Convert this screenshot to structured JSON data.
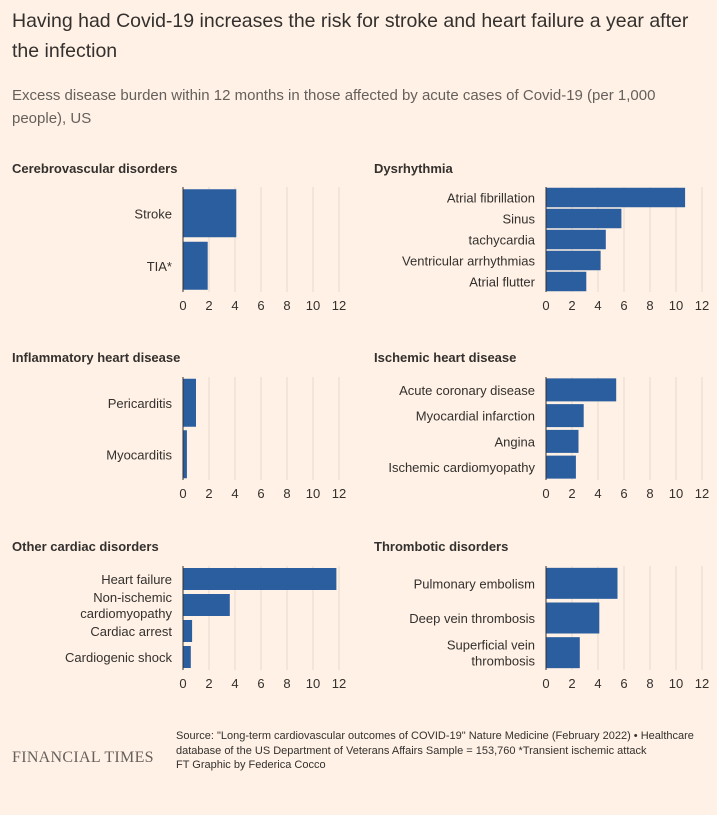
{
  "header": {
    "title": "Having had Covid-19 increases the risk for stroke and heart failure a year after the infection",
    "subtitle": "Excess disease burden within 12 months in those affected by acute cases of Covid-19 (per 1,000 people), US"
  },
  "footer": {
    "logo": "FINANCIAL TIMES",
    "source": "Source: \"Long-term cardiovascular outcomes of COVID-19\" Nature Medicine (February 2022) • Healthcare database of the US Department of Veterans Affairs Sample = 153,760 *Transient ischemic attack",
    "credit": "FT Graphic by Federica Cocco"
  },
  "colors": {
    "bar": "#2a5e9e",
    "grid": "#e7d9cc",
    "axis": "#33302e",
    "text": "#33302e",
    "background": "#fff1e5"
  },
  "chart_data": [
    {
      "type": "bar",
      "orientation": "horizontal",
      "title": "Cerebrovascular disorders",
      "categories": [
        "Stroke",
        "TIA*"
      ],
      "values": [
        4.1,
        1.9
      ],
      "xlim": [
        0,
        12
      ],
      "xticks": [
        "0",
        "2",
        "4",
        "6",
        "8",
        "10",
        "12"
      ],
      "grid": true
    },
    {
      "type": "bar",
      "orientation": "horizontal",
      "title": "Dysrhythmia",
      "categories": [
        "Atrial fibrillation",
        "Sinus",
        "tachycardia",
        "Ventricular arrhythmias",
        "Atrial flutter"
      ],
      "values": [
        10.7,
        5.8,
        4.6,
        4.2,
        3.1
      ],
      "xlim": [
        0,
        12
      ],
      "xticks": [
        "0",
        "2",
        "4",
        "6",
        "8",
        "10",
        "12"
      ],
      "grid": true
    },
    {
      "type": "bar",
      "orientation": "horizontal",
      "title": "Inflammatory heart disease",
      "categories": [
        "Pericarditis",
        "Myocarditis"
      ],
      "values": [
        1.0,
        0.3
      ],
      "xlim": [
        0,
        12
      ],
      "xticks": [
        "0",
        "2",
        "4",
        "6",
        "8",
        "10",
        "12"
      ],
      "grid": true
    },
    {
      "type": "bar",
      "orientation": "horizontal",
      "title": "Ischemic heart disease",
      "categories": [
        "Acute coronary disease",
        "Myocardial infarction",
        "Angina",
        "Ischemic cardiomyopathy"
      ],
      "values": [
        5.4,
        2.9,
        2.5,
        2.3
      ],
      "xlim": [
        0,
        12
      ],
      "xticks": [
        "0",
        "2",
        "4",
        "6",
        "8",
        "10",
        "12"
      ],
      "grid": true
    },
    {
      "type": "bar",
      "orientation": "horizontal",
      "title": "Other cardiac disorders",
      "categories": [
        [
          "Heart failure"
        ],
        [
          "Non-ischemic",
          "cardiomyopathy"
        ],
        [
          "Cardiac arrest"
        ],
        [
          "Cardiogenic shock"
        ]
      ],
      "values": [
        11.8,
        3.6,
        0.7,
        0.6
      ],
      "xlim": [
        0,
        12
      ],
      "xticks": [
        "0",
        "2",
        "4",
        "6",
        "8",
        "10",
        "12"
      ],
      "grid": true
    },
    {
      "type": "bar",
      "orientation": "horizontal",
      "title": "Thrombotic disorders",
      "categories": [
        [
          "Pulmonary embolism"
        ],
        [
          "Deep vein thrombosis"
        ],
        [
          "Superficial vein",
          "thrombosis"
        ]
      ],
      "values": [
        5.5,
        4.1,
        2.6
      ],
      "xlim": [
        0,
        12
      ],
      "xticks": [
        "0",
        "2",
        "4",
        "6",
        "8",
        "10",
        "12"
      ],
      "grid": true
    }
  ]
}
